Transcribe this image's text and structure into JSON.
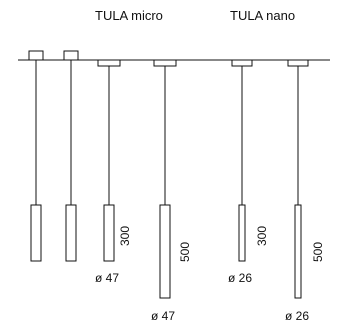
{
  "groups": {
    "micro": {
      "title": "TULA micro"
    },
    "nano": {
      "title": "TULA nano"
    }
  },
  "fixtures": [
    {
      "family": "canopy",
      "canopy": "square",
      "length_label": "",
      "diameter_label": ""
    },
    {
      "family": "canopy",
      "canopy": "square",
      "length_label": "",
      "diameter_label": ""
    },
    {
      "family": "micro",
      "canopy": "flat",
      "length_label": "300",
      "diameter_label": "ø 47"
    },
    {
      "family": "micro",
      "canopy": "flat",
      "length_label": "500",
      "diameter_label": "ø 47"
    },
    {
      "family": "nano",
      "canopy": "flat",
      "length_label": "300",
      "diameter_label": "ø 26"
    },
    {
      "family": "nano",
      "canopy": "flat",
      "length_label": "500",
      "diameter_label": "ø 26"
    }
  ],
  "colors": {
    "line": "#111111",
    "background": "#ffffff"
  }
}
